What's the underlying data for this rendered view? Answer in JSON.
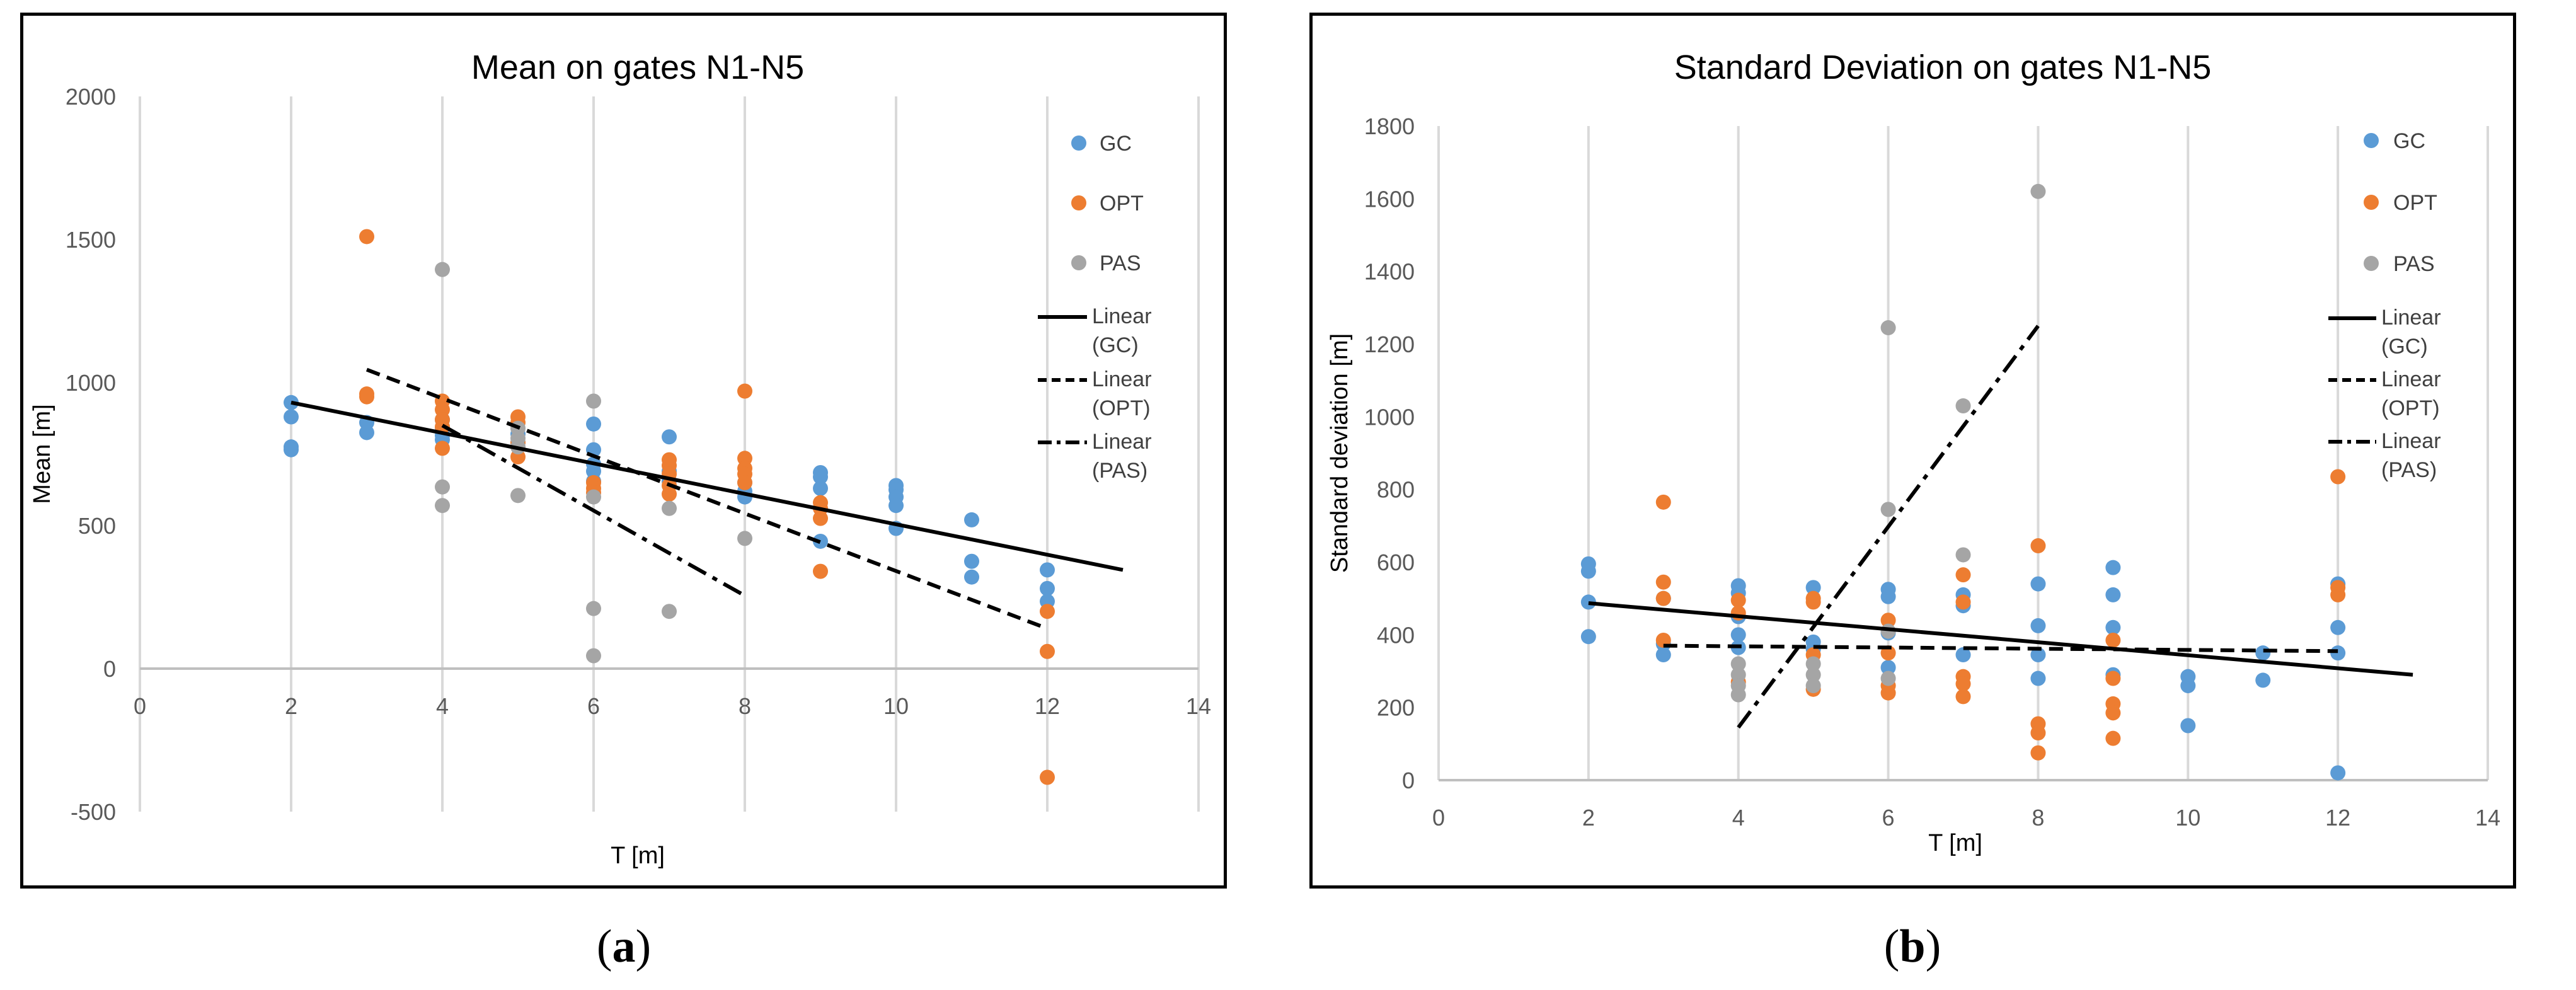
{
  "panel_labels": {
    "a_open": "(",
    "a_letter": "a",
    "a_close": ")",
    "b_open": "(",
    "b_letter": "b",
    "b_close": ")"
  },
  "chart_data": [
    {
      "type": "scatter",
      "title": "Mean on gates N1-N5",
      "xlabel": "T [m]",
      "ylabel": "Mean [m]",
      "xlim": [
        0,
        14
      ],
      "ylim": [
        -500,
        2000
      ],
      "xticks": [
        0,
        2,
        4,
        6,
        8,
        10,
        12,
        14
      ],
      "yticks": [
        -500,
        0,
        500,
        1000,
        1500,
        2000
      ],
      "xgrid": true,
      "ygrid": false,
      "colors": {
        "GC": "#5b9bd5",
        "OPT": "#ed7d31",
        "PAS": "#a5a5a5"
      },
      "legend": [
        {
          "name": "GC",
          "kind": "marker",
          "series": "GC"
        },
        {
          "name": "OPT",
          "kind": "marker",
          "series": "OPT"
        },
        {
          "name": "PAS",
          "kind": "marker",
          "series": "PAS"
        },
        {
          "name": "Linear (GC)",
          "lines": [
            "Linear",
            "(GC)"
          ],
          "kind": "line",
          "dash": "solid"
        },
        {
          "name": "Linear (OPT)",
          "lines": [
            "Linear",
            "(OPT)"
          ],
          "kind": "line",
          "dash": "dash"
        },
        {
          "name": "Linear (PAS)",
          "lines": [
            "Linear",
            "(PAS)"
          ],
          "kind": "line",
          "dash": "dashdot"
        }
      ],
      "series": [
        {
          "name": "GC",
          "points": [
            [
              2,
              930
            ],
            [
              2,
              880
            ],
            [
              2,
              775
            ],
            [
              2,
              765
            ],
            [
              3,
              860
            ],
            [
              3,
              825
            ],
            [
              4,
              870
            ],
            [
              4,
              840
            ],
            [
              4,
              815
            ],
            [
              4,
              800
            ],
            [
              5,
              820
            ],
            [
              5,
              790
            ],
            [
              6,
              855
            ],
            [
              6,
              765
            ],
            [
              6,
              715
            ],
            [
              6,
              690
            ],
            [
              6,
              655
            ],
            [
              7,
              810
            ],
            [
              7,
              690
            ],
            [
              7,
              655
            ],
            [
              8,
              650
            ],
            [
              8,
              620
            ],
            [
              8,
              600
            ],
            [
              9,
              685
            ],
            [
              9,
              670
            ],
            [
              9,
              630
            ],
            [
              9,
              445
            ],
            [
              10,
              640
            ],
            [
              10,
              625
            ],
            [
              10,
              600
            ],
            [
              10,
              570
            ],
            [
              10,
              490
            ],
            [
              11,
              520
            ],
            [
              11,
              375
            ],
            [
              11,
              320
            ],
            [
              12,
              345
            ],
            [
              12,
              280
            ],
            [
              12,
              235
            ]
          ]
        },
        {
          "name": "OPT",
          "points": [
            [
              3,
              1510
            ],
            [
              3,
              960
            ],
            [
              3,
              950
            ],
            [
              4,
              935
            ],
            [
              4,
              905
            ],
            [
              4,
              870
            ],
            [
              4,
              845
            ],
            [
              4,
              770
            ],
            [
              5,
              880
            ],
            [
              5,
              860
            ],
            [
              5,
              790
            ],
            [
              5,
              740
            ],
            [
              6,
              650
            ],
            [
              6,
              630
            ],
            [
              6,
              615
            ],
            [
              7,
              730
            ],
            [
              7,
              710
            ],
            [
              7,
              680
            ],
            [
              7,
              640
            ],
            [
              7,
              610
            ],
            [
              8,
              970
            ],
            [
              8,
              735
            ],
            [
              8,
              700
            ],
            [
              8,
              680
            ],
            [
              8,
              650
            ],
            [
              9,
              580
            ],
            [
              9,
              560
            ],
            [
              9,
              525
            ],
            [
              9,
              340
            ],
            [
              12,
              200
            ],
            [
              12,
              60
            ],
            [
              12,
              -380
            ]
          ]
        },
        {
          "name": "PAS",
          "points": [
            [
              4,
              1395
            ],
            [
              4,
              635
            ],
            [
              4,
              570
            ],
            [
              5,
              840
            ],
            [
              5,
              805
            ],
            [
              5,
              775
            ],
            [
              5,
              605
            ],
            [
              6,
              935
            ],
            [
              6,
              600
            ],
            [
              6,
              210
            ],
            [
              6,
              45
            ],
            [
              7,
              560
            ],
            [
              7,
              200
            ],
            [
              8,
              455
            ]
          ]
        }
      ],
      "trendlines": [
        {
          "name": "Linear (GC)",
          "dash": "solid",
          "x": [
            2,
            13
          ],
          "y": [
            930,
            345
          ]
        },
        {
          "name": "Linear (OPT)",
          "dash": "dash",
          "x": [
            3,
            12
          ],
          "y": [
            1045,
            140
          ]
        },
        {
          "name": "Linear (PAS)",
          "dash": "dashdot",
          "x": [
            4,
            8
          ],
          "y": [
            850,
            255
          ]
        }
      ]
    },
    {
      "type": "scatter",
      "title": "Standard Deviation on gates N1-N5",
      "xlabel": "T [m]",
      "ylabel": "Standard deviation [m]",
      "xlim": [
        0,
        14
      ],
      "ylim": [
        0,
        1800
      ],
      "xticks": [
        0,
        2,
        4,
        6,
        8,
        10,
        12,
        14
      ],
      "yticks": [
        0,
        200,
        400,
        600,
        800,
        1000,
        1200,
        1400,
        1600,
        1800
      ],
      "xgrid": true,
      "ygrid": false,
      "colors": {
        "GC": "#5b9bd5",
        "OPT": "#ed7d31",
        "PAS": "#a5a5a5"
      },
      "legend": [
        {
          "name": "GC",
          "kind": "marker",
          "series": "GC"
        },
        {
          "name": "OPT",
          "kind": "marker",
          "series": "OPT"
        },
        {
          "name": "PAS",
          "kind": "marker",
          "series": "PAS"
        },
        {
          "name": "Linear (GC)",
          "lines": [
            "Linear",
            "(GC)"
          ],
          "kind": "line",
          "dash": "solid"
        },
        {
          "name": "Linear (OPT)",
          "lines": [
            "Linear",
            "(OPT)"
          ],
          "kind": "line",
          "dash": "dash"
        },
        {
          "name": "Linear (PAS)",
          "lines": [
            "Linear",
            "(PAS)"
          ],
          "kind": "line",
          "dash": "dashdot"
        }
      ],
      "series": [
        {
          "name": "GC",
          "points": [
            [
              2,
              595
            ],
            [
              2,
              575
            ],
            [
              2,
              490
            ],
            [
              2,
              395
            ],
            [
              3,
              500
            ],
            [
              3,
              375
            ],
            [
              3,
              345
            ],
            [
              4,
              535
            ],
            [
              4,
              515
            ],
            [
              4,
              450
            ],
            [
              4,
              400
            ],
            [
              4,
              365
            ],
            [
              5,
              530
            ],
            [
              5,
              380
            ],
            [
              5,
              360
            ],
            [
              6,
              525
            ],
            [
              6,
              505
            ],
            [
              6,
              405
            ],
            [
              6,
              310
            ],
            [
              7,
              510
            ],
            [
              7,
              480
            ],
            [
              7,
              345
            ],
            [
              8,
              540
            ],
            [
              8,
              425
            ],
            [
              8,
              345
            ],
            [
              8,
              280
            ],
            [
              9,
              585
            ],
            [
              9,
              510
            ],
            [
              9,
              420
            ],
            [
              9,
              290
            ],
            [
              10,
              285
            ],
            [
              10,
              260
            ],
            [
              10,
              150
            ],
            [
              11,
              350
            ],
            [
              11,
              275
            ],
            [
              12,
              540
            ],
            [
              12,
              420
            ],
            [
              12,
              350
            ],
            [
              12,
              20
            ]
          ]
        },
        {
          "name": "OPT",
          "points": [
            [
              3,
              765
            ],
            [
              3,
              545
            ],
            [
              3,
              500
            ],
            [
              3,
              385
            ],
            [
              4,
              495
            ],
            [
              4,
              460
            ],
            [
              4,
              270
            ],
            [
              5,
              500
            ],
            [
              5,
              490
            ],
            [
              5,
              345
            ],
            [
              5,
              250
            ],
            [
              6,
              440
            ],
            [
              6,
              350
            ],
            [
              6,
              260
            ],
            [
              6,
              240
            ],
            [
              7,
              565
            ],
            [
              7,
              490
            ],
            [
              7,
              285
            ],
            [
              7,
              265
            ],
            [
              7,
              230
            ],
            [
              8,
              645
            ],
            [
              8,
              155
            ],
            [
              8,
              130
            ],
            [
              8,
              75
            ],
            [
              9,
              385
            ],
            [
              9,
              280
            ],
            [
              9,
              210
            ],
            [
              9,
              185
            ],
            [
              9,
              115
            ],
            [
              12,
              835
            ],
            [
              12,
              530
            ],
            [
              12,
              510
            ]
          ]
        },
        {
          "name": "PAS",
          "points": [
            [
              4,
              320
            ],
            [
              4,
              290
            ],
            [
              4,
              260
            ],
            [
              4,
              235
            ],
            [
              5,
              320
            ],
            [
              5,
              290
            ],
            [
              5,
              260
            ],
            [
              6,
              1245
            ],
            [
              6,
              745
            ],
            [
              6,
              410
            ],
            [
              6,
              280
            ],
            [
              7,
              1030
            ],
            [
              7,
              620
            ],
            [
              8,
              1620
            ]
          ]
        }
      ],
      "trendlines": [
        {
          "name": "Linear (GC)",
          "dash": "solid",
          "x": [
            2,
            13
          ],
          "y": [
            487,
            290
          ]
        },
        {
          "name": "Linear (OPT)",
          "dash": "dash",
          "x": [
            3,
            12
          ],
          "y": [
            370,
            355
          ]
        },
        {
          "name": "Linear (PAS)",
          "dash": "dashdot",
          "x": [
            4,
            8
          ],
          "y": [
            145,
            1250
          ]
        }
      ]
    }
  ]
}
